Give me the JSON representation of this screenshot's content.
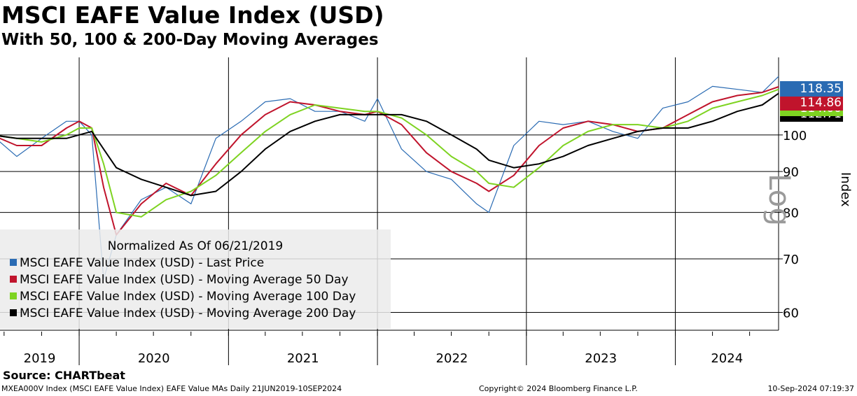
{
  "title": "MSCI EAFE Value Index (USD)",
  "subtitle": "With 50, 100 & 200-Day Moving Averages",
  "source": "Source: CHARTbeat",
  "footer": {
    "left": "MXEA000V Index (MSCI EAFE Value Index) EAFE Value MAs  Daily 21JUN2019-10SEP2024",
    "center": "Copyright© 2024 Bloomberg Finance L.P.",
    "right": "10-Sep-2024 07:19:37"
  },
  "legend": {
    "normalized": "Normalized As Of 06/21/2019",
    "items": [
      {
        "label": "MSCI EAFE Value Index (USD) - Last Price",
        "color": "#2a6bb3"
      },
      {
        "label": "MSCI EAFE Value Index (USD) - Moving Average 50 Day",
        "color": "#c0142c"
      },
      {
        "label": "MSCI EAFE Value Index (USD) - Moving Average 100 Day",
        "color": "#7ed321"
      },
      {
        "label": "MSCI EAFE Value Index (USD) - Moving Average 200 Day",
        "color": "#000000"
      }
    ]
  },
  "last_values": [
    {
      "label": "118.35",
      "color": "#2a6bb3"
    },
    {
      "label": "114.86",
      "color": "#c0142c"
    },
    {
      "label": "114.00",
      "color": "#7ed321"
    },
    {
      "label": "112.71",
      "color": "#000000"
    }
  ],
  "axis": {
    "scale_label": "Log",
    "y_name": "Index"
  },
  "chart_data": {
    "type": "line",
    "yscale": "log",
    "ylim": [
      57,
      125
    ],
    "yticks": [
      60,
      70,
      80,
      90,
      100
    ],
    "xlim": [
      "2019-06-21",
      "2024-09-10"
    ],
    "xticks": [
      "2019",
      "2020",
      "2021",
      "2022",
      "2023",
      "2024"
    ],
    "grid": true,
    "legend_position": "bottom-left",
    "x": [
      "2019-06",
      "2019-08",
      "2019-10",
      "2019-12",
      "2020-01",
      "2020-02",
      "2020-03",
      "2020-04",
      "2020-06",
      "2020-08",
      "2020-10",
      "2020-12",
      "2021-02",
      "2021-04",
      "2021-06",
      "2021-08",
      "2021-10",
      "2021-12",
      "2022-01",
      "2022-03",
      "2022-05",
      "2022-07",
      "2022-09",
      "2022-10",
      "2022-12",
      "2023-02",
      "2023-04",
      "2023-06",
      "2023-08",
      "2023-10",
      "2023-12",
      "2024-02",
      "2024-04",
      "2024-06",
      "2024-08",
      "2024-09"
    ],
    "series": [
      {
        "name": "MSCI EAFE Value Index (USD) - Last Price",
        "color": "#2a6bb3",
        "values": [
          100,
          94,
          99,
          104,
          104,
          100,
          66,
          75,
          83,
          86,
          82,
          99,
          104,
          110,
          111,
          107,
          107,
          104,
          111,
          96,
          90,
          88,
          82,
          80,
          97,
          104,
          103,
          104,
          101,
          99,
          108,
          110,
          115,
          114,
          113,
          118.35
        ]
      },
      {
        "name": "MSCI EAFE Value Index (USD) - Moving Average 50 Day",
        "color": "#c0142c",
        "values": [
          100,
          97,
          97,
          102,
          104,
          102,
          86,
          75,
          82,
          87,
          84,
          92,
          100,
          106,
          110,
          109,
          107,
          106,
          107,
          103,
          95,
          90,
          87,
          85,
          89,
          97,
          102,
          104,
          103,
          101,
          102,
          106,
          110,
          112,
          113,
          114.86
        ]
      },
      {
        "name": "MSCI EAFE Value Index (USD) - Moving Average 100 Day",
        "color": "#7ed321",
        "values": [
          100,
          99,
          98,
          100,
          102,
          102,
          92,
          80,
          79,
          83,
          85,
          89,
          95,
          101,
          106,
          109,
          108,
          107,
          107,
          105,
          100,
          94,
          90,
          87,
          86,
          91,
          97,
          101,
          103,
          103,
          102,
          104,
          108,
          110,
          112,
          114.0
        ]
      },
      {
        "name": "MSCI EAFE Value Index (USD) - Moving Average 200 Day",
        "color": "#000000",
        "values": [
          100,
          99,
          99,
          99,
          100,
          101,
          96,
          91,
          88,
          86,
          84,
          85,
          90,
          96,
          101,
          104,
          106,
          106,
          106,
          106,
          104,
          100,
          96,
          93,
          91,
          92,
          94,
          97,
          99,
          101,
          102,
          102,
          104,
          107,
          109,
          112.71
        ]
      }
    ]
  }
}
